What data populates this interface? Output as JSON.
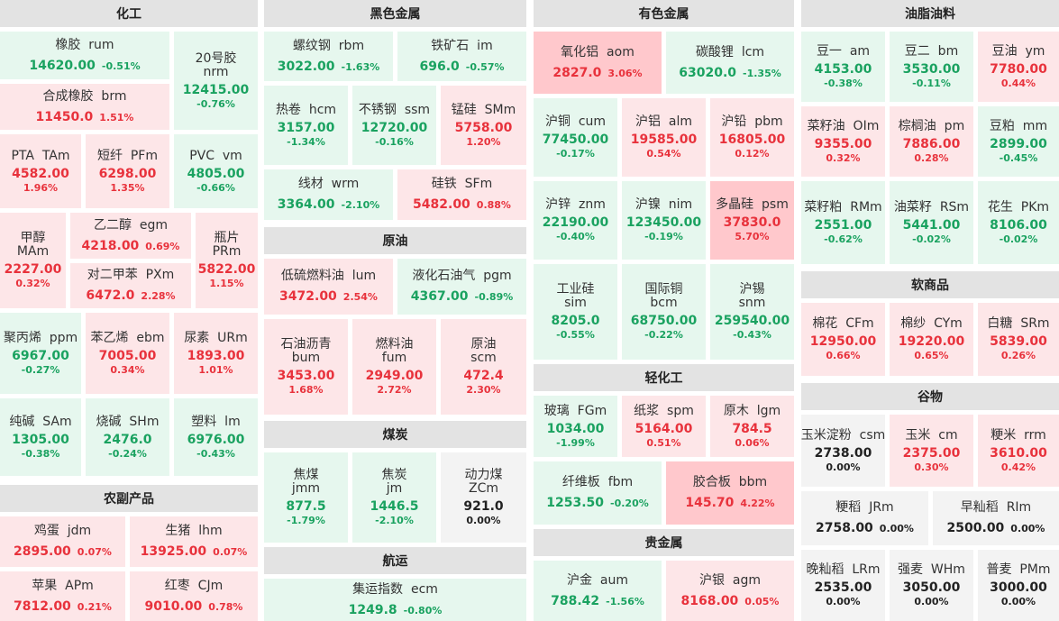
{
  "sections": {
    "huagong": "化工",
    "heise": "黑色金属",
    "yuanyou": "原油",
    "meitan": "煤炭",
    "hangyun": "航运",
    "youse": "有色金属",
    "qinghuagong": "轻化工",
    "guijinshu": "贵金属",
    "youzhi": "油脂油料",
    "ruanshangpin": "软商品",
    "guwu": "谷物",
    "nongfu": "农副产品"
  },
  "tiles": [
    {
      "name": "橡胶  rum",
      "price": "14620.00",
      "change": "-0.51%",
      "dir": "down"
    },
    {
      "name": "20号胶\nnrm",
      "price": "12415.00",
      "change": "-0.76%",
      "dir": "down"
    },
    {
      "name": "合成橡胶  brm",
      "price": "11450.0",
      "change": "1.51%",
      "dir": "up"
    },
    {
      "name": "PTA  TAm",
      "price": "4582.00",
      "change": "1.96%",
      "dir": "up"
    },
    {
      "name": "短纤  PFm",
      "price": "6298.00",
      "change": "1.35%",
      "dir": "up"
    },
    {
      "name": "PVC  vm",
      "price": "4805.00",
      "change": "-0.66%",
      "dir": "down"
    },
    {
      "name": "甲醇\nMAm",
      "price": "2227.00",
      "change": "0.32%",
      "dir": "up"
    },
    {
      "name": "乙二醇  egm",
      "price": "4218.00",
      "change": "0.69%",
      "dir": "up"
    },
    {
      "name": "对二甲苯  PXm",
      "price": "6472.0",
      "change": "2.28%",
      "dir": "up"
    },
    {
      "name": "瓶片\nPRm",
      "price": "5822.00",
      "change": "1.15%",
      "dir": "up"
    },
    {
      "name": "聚丙烯  ppm",
      "price": "6967.00",
      "change": "-0.27%",
      "dir": "down"
    },
    {
      "name": "苯乙烯  ebm",
      "price": "7005.00",
      "change": "0.34%",
      "dir": "up"
    },
    {
      "name": "尿素  URm",
      "price": "1893.00",
      "change": "1.01%",
      "dir": "up"
    },
    {
      "name": "纯碱  SAm",
      "price": "1305.00",
      "change": "-0.38%",
      "dir": "down"
    },
    {
      "name": "烧碱  SHm",
      "price": "2476.0",
      "change": "-0.24%",
      "dir": "down"
    },
    {
      "name": "塑料  lm",
      "price": "6976.00",
      "change": "-0.43%",
      "dir": "down"
    },
    {
      "name": "鸡蛋  jdm",
      "price": "2895.00",
      "change": "0.07%",
      "dir": "up"
    },
    {
      "name": "生猪  lhm",
      "price": "13925.00",
      "change": "0.07%",
      "dir": "up"
    },
    {
      "name": "苹果  APm",
      "price": "7812.00",
      "change": "0.21%",
      "dir": "up"
    },
    {
      "name": "红枣  CJm",
      "price": "9010.00",
      "change": "0.78%",
      "dir": "up"
    },
    {
      "name": "螺纹钢  rbm",
      "price": "3022.00",
      "change": "-1.63%",
      "dir": "down"
    },
    {
      "name": "铁矿石  im",
      "price": "696.0",
      "change": "-0.57%",
      "dir": "down"
    },
    {
      "name": "热卷  hcm",
      "price": "3157.00",
      "change": "-1.34%",
      "dir": "down"
    },
    {
      "name": "不锈钢  ssm",
      "price": "12720.00",
      "change": "-0.16%",
      "dir": "down"
    },
    {
      "name": "锰硅  SMm",
      "price": "5758.00",
      "change": "1.20%",
      "dir": "up"
    },
    {
      "name": "线材  wrm",
      "price": "3364.00",
      "change": "-2.10%",
      "dir": "down"
    },
    {
      "name": "硅铁  SFm",
      "price": "5482.00",
      "change": "0.88%",
      "dir": "up"
    },
    {
      "name": "低硫燃料油  lum",
      "price": "3472.00",
      "change": "2.54%",
      "dir": "up"
    },
    {
      "name": "液化石油气  pgm",
      "price": "4367.00",
      "change": "-0.89%",
      "dir": "down"
    },
    {
      "name": "石油沥青\nbum",
      "price": "3453.00",
      "change": "1.68%",
      "dir": "up"
    },
    {
      "name": "燃料油\nfum",
      "price": "2949.00",
      "change": "2.72%",
      "dir": "up"
    },
    {
      "name": "原油\nscm",
      "price": "472.4",
      "change": "2.30%",
      "dir": "up"
    },
    {
      "name": "焦煤\njmm",
      "price": "877.5",
      "change": "-1.79%",
      "dir": "down"
    },
    {
      "name": "焦炭\njm",
      "price": "1446.5",
      "change": "-2.10%",
      "dir": "down"
    },
    {
      "name": "动力煤\nZCm",
      "price": "921.0",
      "change": "0.00%",
      "dir": "flat"
    },
    {
      "name": "集运指数  ecm",
      "price": "1249.8",
      "change": "-0.80%",
      "dir": "down"
    },
    {
      "name": "氧化铝  aom",
      "price": "2827.0",
      "change": "3.06%",
      "dir": "strong-up"
    },
    {
      "name": "碳酸锂  lcm",
      "price": "63020.0",
      "change": "-1.35%",
      "dir": "down"
    },
    {
      "name": "沪铜  cum",
      "price": "77450.00",
      "change": "-0.17%",
      "dir": "down"
    },
    {
      "name": "沪铝  alm",
      "price": "19585.00",
      "change": "0.54%",
      "dir": "up"
    },
    {
      "name": "沪铅  pbm",
      "price": "16805.00",
      "change": "0.12%",
      "dir": "up"
    },
    {
      "name": "沪锌  znm",
      "price": "22190.00",
      "change": "-0.40%",
      "dir": "down"
    },
    {
      "name": "沪镍  nim",
      "price": "123450.00",
      "change": "-0.19%",
      "dir": "down"
    },
    {
      "name": "多晶硅  psm",
      "price": "37830.0",
      "change": "5.70%",
      "dir": "strong-up"
    },
    {
      "name": "工业硅\nsim",
      "price": "8205.0",
      "change": "-0.55%",
      "dir": "down"
    },
    {
      "name": "国际铜\nbcm",
      "price": "68750.00",
      "change": "-0.22%",
      "dir": "down"
    },
    {
      "name": "沪锡\nsnm",
      "price": "259540.00",
      "change": "-0.43%",
      "dir": "down"
    },
    {
      "name": "玻璃  FGm",
      "price": "1034.00",
      "change": "-1.99%",
      "dir": "down"
    },
    {
      "name": "纸浆  spm",
      "price": "5164.00",
      "change": "0.51%",
      "dir": "up"
    },
    {
      "name": "原木  lgm",
      "price": "784.5",
      "change": "0.06%",
      "dir": "up"
    },
    {
      "name": "纤维板  fbm",
      "price": "1253.50",
      "change": "-0.20%",
      "dir": "down"
    },
    {
      "name": "胶合板  bbm",
      "price": "145.70",
      "change": "4.22%",
      "dir": "strong-up"
    },
    {
      "name": "沪金  aum",
      "price": "788.42",
      "change": "-1.56%",
      "dir": "down"
    },
    {
      "name": "沪银  agm",
      "price": "8168.00",
      "change": "0.05%",
      "dir": "up"
    },
    {
      "name": "豆一  am",
      "price": "4153.00",
      "change": "-0.38%",
      "dir": "down"
    },
    {
      "name": "豆二  bm",
      "price": "3530.00",
      "change": "-0.11%",
      "dir": "down"
    },
    {
      "name": "豆油  ym",
      "price": "7780.00",
      "change": "0.44%",
      "dir": "up"
    },
    {
      "name": "菜籽油  OIm",
      "price": "9355.00",
      "change": "0.32%",
      "dir": "up"
    },
    {
      "name": "棕榈油  pm",
      "price": "7886.00",
      "change": "0.28%",
      "dir": "up"
    },
    {
      "name": "豆粕  mm",
      "price": "2899.00",
      "change": "-0.45%",
      "dir": "down"
    },
    {
      "name": "菜籽粕  RMm",
      "price": "2551.00",
      "change": "-0.62%",
      "dir": "down"
    },
    {
      "name": "油菜籽  RSm",
      "price": "5441.00",
      "change": "-0.02%",
      "dir": "down"
    },
    {
      "name": "花生  PKm",
      "price": "8106.00",
      "change": "-0.02%",
      "dir": "down"
    },
    {
      "name": "棉花  CFm",
      "price": "12950.00",
      "change": "0.66%",
      "dir": "up"
    },
    {
      "name": "棉纱  CYm",
      "price": "19220.00",
      "change": "0.65%",
      "dir": "up"
    },
    {
      "name": "白糖  SRm",
      "price": "5839.00",
      "change": "0.26%",
      "dir": "up"
    },
    {
      "name": "玉米淀粉  csm",
      "price": "2738.00",
      "change": "0.00%",
      "dir": "flat"
    },
    {
      "name": "玉米  cm",
      "price": "2375.00",
      "change": "0.30%",
      "dir": "up"
    },
    {
      "name": "粳米  rrm",
      "price": "3610.00",
      "change": "0.42%",
      "dir": "up"
    },
    {
      "name": "粳稻  JRm",
      "price": "2758.00",
      "change": "0.00%",
      "dir": "flat"
    },
    {
      "name": "早籼稻  RIm",
      "price": "2500.00",
      "change": "0.00%",
      "dir": "flat"
    },
    {
      "name": "晚籼稻  LRm",
      "price": "2535.00",
      "change": "0.00%",
      "dir": "flat"
    },
    {
      "name": "强麦  WHm",
      "price": "3050.00",
      "change": "0.00%",
      "dir": "flat"
    },
    {
      "name": "普麦  PMm",
      "price": "3000.00",
      "change": "0.00%",
      "dir": "flat"
    }
  ]
}
